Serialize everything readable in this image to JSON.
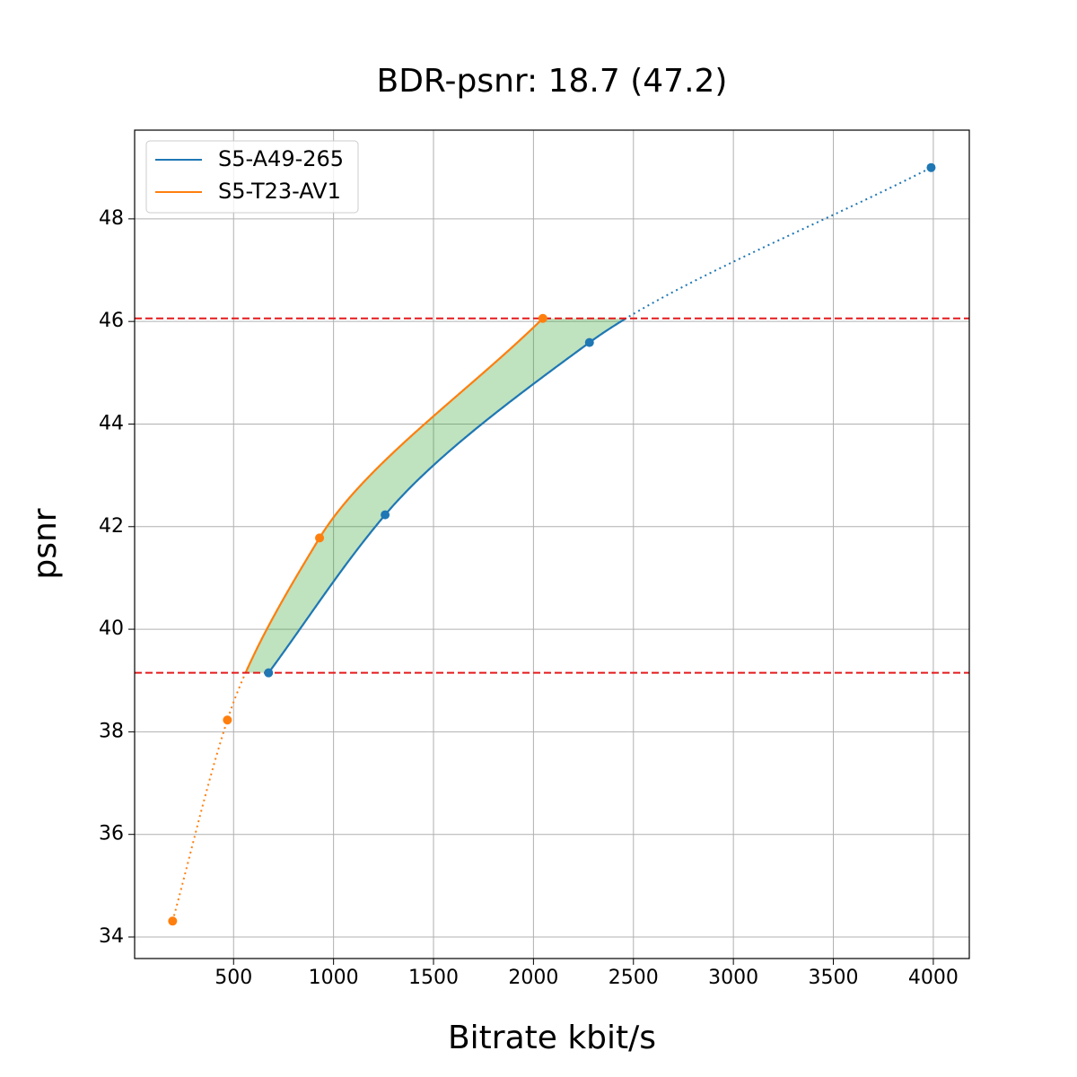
{
  "chart_data": {
    "type": "line",
    "title": "BDR-psnr: 18.7 (47.2)",
    "x_label": "Bitrate kbit/s",
    "y_label": "psnr",
    "series": [
      {
        "name": "S5-A49-265",
        "color": "#1f77b4",
        "x": [
          675,
          1258,
          2280,
          3989
        ],
        "values": [
          39.15,
          42.23,
          45.59,
          49.0
        ]
      },
      {
        "name": "S5-T23-AV1",
        "color": "#ff7f0e",
        "x": [
          195,
          469,
          930,
          2047
        ],
        "values": [
          34.31,
          38.23,
          41.78,
          46.06
        ]
      }
    ],
    "hlines": [
      46.06,
      39.15
    ],
    "hline_color": "#e41a1c",
    "fill_color": "#2ca02c",
    "xlim": [
      5,
      4180
    ],
    "ylim": [
      33.58,
      49.73
    ],
    "xticks": [
      500,
      1000,
      1500,
      2000,
      2500,
      3000,
      3500,
      4000
    ],
    "yticks": [
      34,
      36,
      38,
      40,
      42,
      44,
      46,
      48
    ],
    "grid": true,
    "legend": "upper left"
  }
}
